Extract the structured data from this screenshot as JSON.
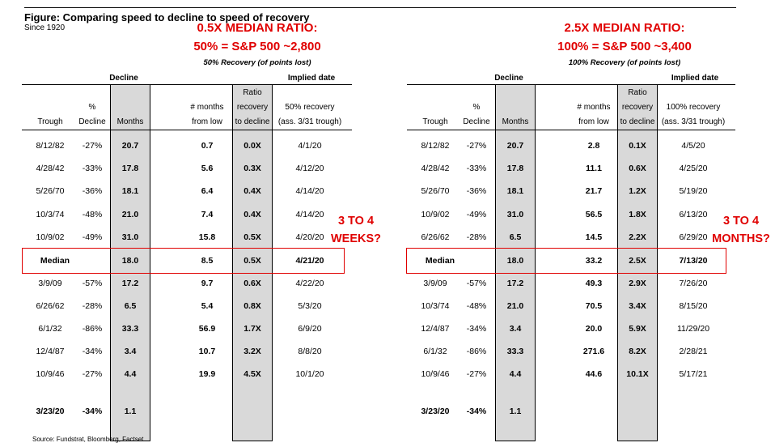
{
  "figure": {
    "title": "Figure: Comparing speed to decline to speed of recovery",
    "subtitle": "Since 1920",
    "source": "Source: Fundstrat, Bloomberg, Factset"
  },
  "left_panel": {
    "headline_1": "0.5X MEDIAN RATIO:",
    "headline_2": "50% = S&P 500 ~2,800",
    "subheadline": "50% Recovery (of points lost)",
    "side_note_1": "3 TO 4",
    "side_note_2": "WEEKS?",
    "headers": {
      "decline_group": "Decline",
      "implied_group": "Implied date",
      "trough": "Trough",
      "pct_1": "%",
      "pct_2": "Decline",
      "months": "Months",
      "from_low_1": "# months",
      "from_low_2": "from low",
      "ratio_1": "Ratio",
      "ratio_2": "recovery",
      "ratio_3": "to decline",
      "recov_1": "50% recovery",
      "recov_2": "(ass. 3/31 trough)"
    },
    "rows": [
      [
        "8/12/82",
        "-27%",
        "20.7",
        "0.7",
        "0.0X",
        "4/1/20"
      ],
      [
        "4/28/42",
        "-33%",
        "17.8",
        "5.6",
        "0.3X",
        "4/12/20"
      ],
      [
        "5/26/70",
        "-36%",
        "18.1",
        "6.4",
        "0.4X",
        "4/14/20"
      ],
      [
        "10/3/74",
        "-48%",
        "21.0",
        "7.4",
        "0.4X",
        "4/14/20"
      ],
      [
        "10/9/02",
        "-49%",
        "31.0",
        "15.8",
        "0.5X",
        "4/20/20"
      ],
      [
        "Median",
        "",
        "18.0",
        "8.5",
        "0.5X",
        "4/21/20"
      ],
      [
        "3/9/09",
        "-57%",
        "17.2",
        "9.7",
        "0.6X",
        "4/22/20"
      ],
      [
        "6/26/62",
        "-28%",
        "6.5",
        "5.4",
        "0.8X",
        "5/3/20"
      ],
      [
        "6/1/32",
        "-86%",
        "33.3",
        "56.9",
        "1.7X",
        "6/9/20"
      ],
      [
        "12/4/87",
        "-34%",
        "3.4",
        "10.7",
        "3.2X",
        "8/8/20"
      ],
      [
        "10/9/46",
        "-27%",
        "4.4",
        "19.9",
        "4.5X",
        "10/1/20"
      ],
      [
        "3/23/20",
        "-34%",
        "1.1",
        "",
        "",
        ""
      ]
    ]
  },
  "right_panel": {
    "headline_1": "2.5X MEDIAN RATIO:",
    "headline_2": "100% = S&P 500 ~3,400",
    "subheadline": "100% Recovery (of points lost)",
    "side_note_1": "3 TO 4",
    "side_note_2": "MONTHS?",
    "headers": {
      "decline_group": "Decline",
      "implied_group": "Implied date",
      "trough": "Trough",
      "pct_1": "%",
      "pct_2": "Decline",
      "months": "Months",
      "from_low_1": "# months",
      "from_low_2": "from low",
      "ratio_1": "Ratio",
      "ratio_2": "recovery",
      "ratio_3": "to decline",
      "recov_1": "100% recovery",
      "recov_2": "(ass. 3/31 trough)"
    },
    "rows": [
      [
        "8/12/82",
        "-27%",
        "20.7",
        "2.8",
        "0.1X",
        "4/5/20"
      ],
      [
        "4/28/42",
        "-33%",
        "17.8",
        "11.1",
        "0.6X",
        "4/25/20"
      ],
      [
        "5/26/70",
        "-36%",
        "18.1",
        "21.7",
        "1.2X",
        "5/19/20"
      ],
      [
        "10/9/02",
        "-49%",
        "31.0",
        "56.5",
        "1.8X",
        "6/13/20"
      ],
      [
        "6/26/62",
        "-28%",
        "6.5",
        "14.5",
        "2.2X",
        "6/29/20"
      ],
      [
        "Median",
        "",
        "18.0",
        "33.2",
        "2.5X",
        "7/13/20"
      ],
      [
        "3/9/09",
        "-57%",
        "17.2",
        "49.3",
        "2.9X",
        "7/26/20"
      ],
      [
        "10/3/74",
        "-48%",
        "21.0",
        "70.5",
        "3.4X",
        "8/15/20"
      ],
      [
        "12/4/87",
        "-34%",
        "3.4",
        "20.0",
        "5.9X",
        "11/29/20"
      ],
      [
        "6/1/32",
        "-86%",
        "33.3",
        "271.6",
        "8.2X",
        "2/28/21"
      ],
      [
        "10/9/46",
        "-27%",
        "4.4",
        "44.6",
        "10.1X",
        "5/17/21"
      ],
      [
        "3/23/20",
        "-34%",
        "1.1",
        "",
        "",
        ""
      ]
    ]
  },
  "colors": {
    "accent_red": "#e00000",
    "column_shade": "#d9d9d9"
  }
}
